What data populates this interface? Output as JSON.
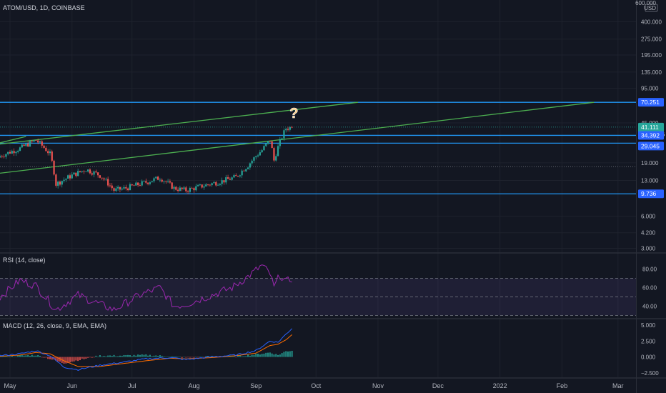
{
  "chart_data": {
    "type": "candlestick",
    "title": "ATOM/USD, 1D, COINBASE",
    "currency": "USD",
    "time_axis": {
      "labels": [
        {
          "text": "May",
          "date": "2021-05-01"
        },
        {
          "text": "Jun",
          "date": "2021-06-01"
        },
        {
          "text": "Jul",
          "date": "2021-07-01"
        },
        {
          "text": "Aug",
          "date": "2021-08-01"
        },
        {
          "text": "Sep",
          "date": "2021-09-01"
        },
        {
          "text": "Oct",
          "date": "2021-10-01"
        },
        {
          "text": "Nov",
          "date": "2021-11-01"
        },
        {
          "text": "Dec",
          "date": "2021-12-01"
        },
        {
          "text": "2022",
          "date": "2022-01-01"
        },
        {
          "text": "Feb",
          "date": "2022-02-01"
        },
        {
          "text": "Mar",
          "date": "2022-03-01"
        }
      ],
      "range": [
        "2021-04-26",
        "2022-03-10"
      ]
    },
    "price_axis": {
      "scale": "log",
      "range": [
        2.8,
        640
      ],
      "ticks": [
        "600.000",
        "400.000",
        "275.000",
        "195.000",
        "135.000",
        "95.000",
        "45.000",
        "19.000",
        "13.000",
        "6.000",
        "4.200",
        "3.000"
      ]
    },
    "price_badges": [
      {
        "text": "70.251",
        "value": 70.251,
        "color": "#2962ff"
      },
      {
        "text": "41.111",
        "sub": "03:51:26",
        "value": 41.111,
        "color": "#26a69a"
      },
      {
        "text": "34.392",
        "value": 34.392,
        "color": "#2962ff"
      },
      {
        "text": "29.045",
        "value": 29.045,
        "color": "#2962ff"
      },
      {
        "text": "9.736",
        "value": 9.736,
        "color": "#2962ff"
      }
    ],
    "horizontal_lines": [
      {
        "value": 70.251,
        "color": "#2196f3"
      },
      {
        "value": 34.392,
        "color": "#2196f3"
      },
      {
        "value": 29.045,
        "color": "#2196f3"
      },
      {
        "value": 9.736,
        "color": "#2196f3"
      }
    ],
    "dotted_lines": [
      {
        "value": 41.111,
        "color": "#26a69a"
      },
      {
        "value": 17.5,
        "color": "#787b86"
      }
    ],
    "trendlines": [
      {
        "from": {
          "date": "2021-04-26",
          "value": 28.5
        },
        "to": {
          "date": "2021-10-22",
          "value": 70.251
        },
        "color": "#4caf50"
      },
      {
        "from": {
          "date": "2021-04-26",
          "value": 29.3
        },
        "to": {
          "date": "2021-05-09",
          "value": 33.6
        },
        "color": "#4caf50"
      },
      {
        "from": {
          "date": "2021-04-26",
          "value": 15.2
        },
        "to": {
          "date": "2022-02-17",
          "value": 70.251
        },
        "color": "#4caf50"
      }
    ],
    "annotation": {
      "text": "?",
      "date": "2021-09-20",
      "value": 55,
      "color": "#ffcc80"
    },
    "price_keypoints": [
      [
        "2021-04-26",
        22.0
      ],
      [
        "2021-05-06",
        26.0
      ],
      [
        "2021-05-14",
        31.0
      ],
      [
        "2021-05-21",
        23.0
      ],
      [
        "2021-05-24",
        12.0
      ],
      [
        "2021-06-01",
        14.5
      ],
      [
        "2021-06-08",
        16.5
      ],
      [
        "2021-06-15",
        14.5
      ],
      [
        "2021-06-22",
        10.5
      ],
      [
        "2021-06-28",
        11.0
      ],
      [
        "2021-07-08",
        12.5
      ],
      [
        "2021-07-15",
        13.8
      ],
      [
        "2021-07-22",
        11.0
      ],
      [
        "2021-07-28",
        10.5
      ],
      [
        "2021-08-05",
        11.5
      ],
      [
        "2021-08-15",
        12.8
      ],
      [
        "2021-08-22",
        14.0
      ],
      [
        "2021-08-28",
        18.0
      ],
      [
        "2021-09-04",
        25.0
      ],
      [
        "2021-09-08",
        31.0
      ],
      [
        "2021-09-10",
        20.0
      ],
      [
        "2021-09-13",
        30.0
      ],
      [
        "2021-09-16",
        40.0
      ],
      [
        "2021-09-19",
        41.111
      ]
    ],
    "indicators": [
      {
        "name": "RSI (14, close)",
        "range": [
          28,
          96
        ],
        "ticks": [
          "80.00",
          "60.00",
          "40.00"
        ],
        "bands": [
          70,
          50,
          30
        ],
        "color": "#9c27b0",
        "keypoints": [
          [
            "2021-04-26",
            50
          ],
          [
            "2021-05-06",
            68
          ],
          [
            "2021-05-14",
            62
          ],
          [
            "2021-05-21",
            44
          ],
          [
            "2021-05-24",
            36
          ],
          [
            "2021-06-04",
            52
          ],
          [
            "2021-06-15",
            42
          ],
          [
            "2021-06-22",
            36
          ],
          [
            "2021-07-05",
            52
          ],
          [
            "2021-07-15",
            60
          ],
          [
            "2021-07-22",
            40
          ],
          [
            "2021-07-28",
            42
          ],
          [
            "2021-08-10",
            52
          ],
          [
            "2021-08-20",
            60
          ],
          [
            "2021-08-28",
            72
          ],
          [
            "2021-09-04",
            84
          ],
          [
            "2021-09-08",
            75
          ],
          [
            "2021-09-10",
            60
          ],
          [
            "2021-09-13",
            74
          ],
          [
            "2021-09-16",
            66
          ],
          [
            "2021-09-19",
            70
          ]
        ]
      },
      {
        "name": "MACD (12, 26, close, 9, EMA, EMA)",
        "range": [
          -3.2,
          5.8
        ],
        "ticks": [
          "5.000",
          "2.500",
          "0.000",
          "−2.500"
        ],
        "macd_color": "#2962ff",
        "signal_color": "#ff6d00",
        "hist_up_color": "#26a69a",
        "hist_down_color": "#ef5350",
        "macd_keypoints": [
          [
            "2021-04-26",
            0.2
          ],
          [
            "2021-05-06",
            0.5
          ],
          [
            "2021-05-14",
            1.0
          ],
          [
            "2021-05-21",
            0.2
          ],
          [
            "2021-05-28",
            -1.6
          ],
          [
            "2021-06-04",
            -2.0
          ],
          [
            "2021-06-15",
            -1.3
          ],
          [
            "2021-06-25",
            -0.9
          ],
          [
            "2021-07-08",
            -0.3
          ],
          [
            "2021-07-20",
            -0.1
          ],
          [
            "2021-07-28",
            -0.4
          ],
          [
            "2021-08-10",
            0.0
          ],
          [
            "2021-08-22",
            0.3
          ],
          [
            "2021-09-01",
            1.0
          ],
          [
            "2021-09-08",
            2.5
          ],
          [
            "2021-09-12",
            2.3
          ],
          [
            "2021-09-16",
            3.6
          ],
          [
            "2021-09-19",
            4.5
          ]
        ],
        "signal_keypoints": [
          [
            "2021-04-26",
            0.1
          ],
          [
            "2021-05-06",
            0.3
          ],
          [
            "2021-05-14",
            0.7
          ],
          [
            "2021-05-21",
            0.5
          ],
          [
            "2021-05-28",
            -0.6
          ],
          [
            "2021-06-04",
            -1.5
          ],
          [
            "2021-06-15",
            -1.5
          ],
          [
            "2021-06-25",
            -1.1
          ],
          [
            "2021-07-08",
            -0.6
          ],
          [
            "2021-07-20",
            -0.2
          ],
          [
            "2021-07-28",
            -0.3
          ],
          [
            "2021-08-10",
            -0.1
          ],
          [
            "2021-08-22",
            0.2
          ],
          [
            "2021-09-01",
            0.6
          ],
          [
            "2021-09-08",
            1.8
          ],
          [
            "2021-09-12",
            2.0
          ],
          [
            "2021-09-16",
            2.7
          ],
          [
            "2021-09-19",
            3.5
          ]
        ]
      }
    ]
  }
}
